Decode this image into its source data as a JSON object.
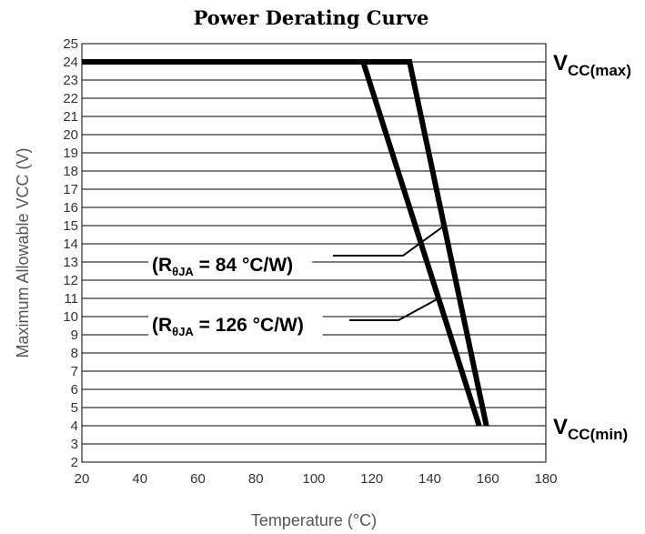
{
  "chart_data": {
    "type": "line",
    "title": "Power Derating Curve",
    "xlabel": "Temperature (°C)",
    "ylabel": "Maximum Allowable VCC (V)",
    "xlim": [
      20,
      180
    ],
    "ylim": [
      2,
      25
    ],
    "xticks": [
      20,
      40,
      60,
      80,
      100,
      120,
      140,
      160,
      180
    ],
    "yticks": [
      2,
      3,
      4,
      5,
      6,
      7,
      8,
      9,
      10,
      11,
      12,
      13,
      14,
      15,
      16,
      17,
      18,
      19,
      20,
      21,
      22,
      23,
      24,
      25
    ],
    "grid": "horizontal",
    "series": [
      {
        "points": [
          {
            "x": 20,
            "y": 24
          },
          {
            "x": 133,
            "y": 24
          },
          {
            "x": 159.5,
            "y": 4
          }
        ]
      },
      {
        "points": [
          {
            "x": 20,
            "y": 24
          },
          {
            "x": 117,
            "y": 24
          },
          {
            "x": 157,
            "y": 4
          }
        ]
      }
    ],
    "annotations": [
      {
        "prefix": "(R",
        "sub": "θJA",
        "suffix": " = 84 °C/W)",
        "target": {
          "x": 145,
          "y": 15
        }
      },
      {
        "prefix": "(R",
        "sub": "θJA",
        "suffix": " = 126 °C/W)",
        "target": {
          "x": 143,
          "y": 11
        }
      }
    ],
    "reference_labels": [
      {
        "main": "V",
        "sub": "CC(max)",
        "y": 24
      },
      {
        "main": "V",
        "sub": "CC(min)",
        "y": 4
      }
    ]
  }
}
